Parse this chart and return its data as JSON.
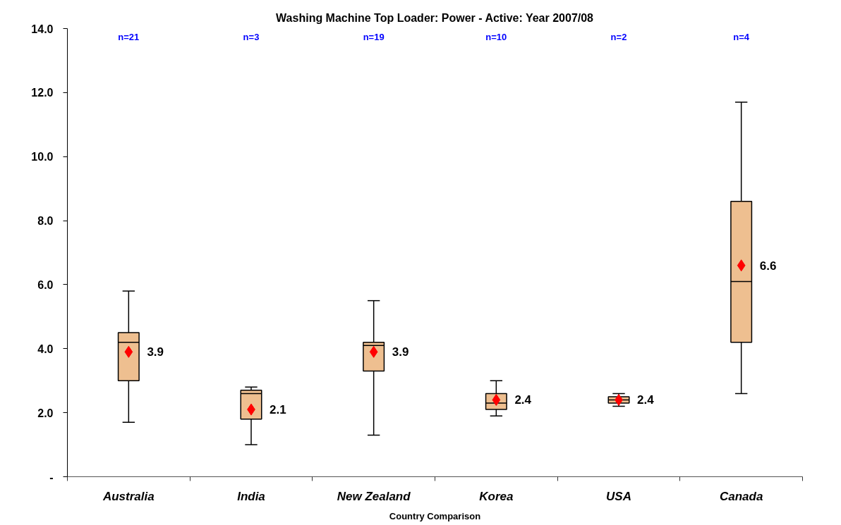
{
  "chart_data": {
    "type": "box",
    "title": "Washing Machine Top Loader: Power - Active: Year 2007/08",
    "xlabel": "Country Comparison",
    "categories": [
      "Australia",
      "India",
      "New Zealand",
      "Korea",
      "USA",
      "Canada"
    ],
    "boxes": [
      {
        "low": 1.7,
        "q1": 3.0,
        "median": 4.2,
        "q3": 4.5,
        "high": 5.8,
        "mean": 3.9
      },
      {
        "low": 1.0,
        "q1": 1.8,
        "median": 2.6,
        "q3": 2.7,
        "high": 2.8,
        "mean": 2.1
      },
      {
        "low": 1.3,
        "q1": 3.3,
        "median": 4.1,
        "q3": 4.2,
        "high": 5.5,
        "mean": 3.9
      },
      {
        "low": 1.9,
        "q1": 2.1,
        "median": 2.3,
        "q3": 2.6,
        "high": 3.0,
        "mean": 2.4
      },
      {
        "low": 2.2,
        "q1": 2.3,
        "median": 2.4,
        "q3": 2.5,
        "high": 2.6,
        "mean": 2.4
      },
      {
        "low": 2.6,
        "q1": 4.2,
        "median": 6.1,
        "q3": 8.6,
        "high": 11.7,
        "mean": 6.6
      }
    ],
    "value_labels": [
      "3.9",
      "2.1",
      "3.9",
      "2.4",
      "2.4",
      "6.6"
    ],
    "color": "#eebf90",
    "marker": "diamond",
    "ylim": [
      0,
      14
    ],
    "yticks": [
      {
        "value": 0,
        "label": "-"
      },
      {
        "value": 2,
        "label": "2.0"
      },
      {
        "value": 4,
        "label": "4.0"
      },
      {
        "value": 6,
        "label": "6.0"
      },
      {
        "value": 8,
        "label": "8.0"
      },
      {
        "value": 10,
        "label": "10.0"
      },
      {
        "value": 12,
        "label": "12.0"
      },
      {
        "value": 14,
        "label": "14.0"
      }
    ],
    "annotations": [
      "n=21",
      "n=3",
      "n=19",
      "n=10",
      "n=2",
      "n=4"
    ]
  }
}
